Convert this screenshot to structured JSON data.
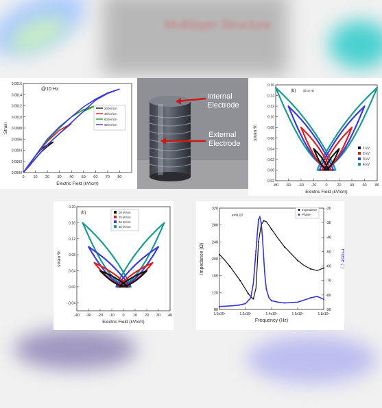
{
  "background": {
    "blurred_text": "Multilayer Structure",
    "colors": {
      "page": "#f1f1f1",
      "panel": "#ffffff"
    }
  },
  "photo": {
    "label_internal": "Internal Electrode",
    "label_external": "External Electrode",
    "arrow_color": "#d01818"
  },
  "chart_data": [
    {
      "type": "line",
      "title": "@10 Hz",
      "xlabel": "Electric Field (kV/cm)",
      "ylabel": "Strain",
      "xlim": [
        0,
        90
      ],
      "ylim": [
        0,
        0.0016
      ],
      "xticks": [
        0,
        10,
        20,
        30,
        40,
        50,
        60,
        70,
        80
      ],
      "yticks": [
        0,
        0.0002,
        0.0004,
        0.0006,
        0.0008,
        0.001,
        0.0012,
        0.0014,
        0.0016
      ],
      "ytick_labels": [
        "0.0000",
        "0.0002",
        "0.0004",
        "0.0006",
        "0.0008",
        "0.0010",
        "0.0012",
        "0.0014",
        "0.0016"
      ],
      "legend_position": "middle-right",
      "series": [
        {
          "name": "20 kV/cm",
          "color": "#111111",
          "x": [
            0,
            5,
            10,
            15,
            20,
            25
          ],
          "y": [
            0,
            0.00012,
            0.00025,
            0.00037,
            0.00047,
            0.00055
          ],
          "return_y": [
            0,
            0.00015,
            0.0003,
            0.00042,
            0.0005,
            0.00055
          ]
        },
        {
          "name": "40 kV/cm",
          "color": "#e02020",
          "x": [
            0,
            10,
            20,
            30,
            40
          ],
          "y": [
            0,
            0.00025,
            0.0005,
            0.0007,
            0.00088
          ],
          "return_y": [
            0,
            0.0003,
            0.00056,
            0.00076,
            0.00088
          ]
        },
        {
          "name": "60 kV/cm",
          "color": "#20a020",
          "x": [
            0,
            10,
            20,
            30,
            40,
            50,
            60
          ],
          "y": [
            0,
            0.00025,
            0.0005,
            0.0007,
            0.0009,
            0.0011,
            0.0012
          ],
          "return_y": [
            0,
            0.0003,
            0.00058,
            0.0008,
            0.001,
            0.00113,
            0.0012
          ]
        },
        {
          "name": "80 kV/cm",
          "color": "#3a3ae0",
          "x": [
            0,
            10,
            20,
            30,
            40,
            50,
            60,
            70,
            80
          ],
          "y": [
            0,
            0.00025,
            0.0005,
            0.0007,
            0.0009,
            0.0011,
            0.0013,
            0.00142,
            0.0015
          ],
          "return_y": [
            0,
            0.0003,
            0.0006,
            0.00082,
            0.001,
            0.00118,
            0.00132,
            0.00143,
            0.0015
          ]
        }
      ]
    },
    {
      "type": "line",
      "title": "@10 Hz",
      "panel_label": "(b)",
      "xlabel": "Electric Field (kV/cm)",
      "ylabel": "strain %",
      "xlim": [
        -80,
        80
      ],
      "ylim": [
        -0.02,
        0.16
      ],
      "xticks": [
        -80,
        -60,
        -40,
        -20,
        0,
        20,
        40,
        60,
        80
      ],
      "yticks": [
        -0.02,
        0,
        0.02,
        0.04,
        0.06,
        0.08,
        0.1,
        0.12,
        0.14,
        0.16
      ],
      "ytick_labels": [
        "-0.02",
        "0.00",
        "0.02",
        "0.04",
        "0.06",
        "0.08",
        "0.10",
        "0.12",
        "0.14",
        "0.16"
      ],
      "legend_position": "bottom-right",
      "series": [
        {
          "name": "1 kV",
          "color": "#111111",
          "emax": 20,
          "smax": 0.04,
          "marker": "square"
        },
        {
          "name": "2 kV",
          "color": "#e02020",
          "emax": 40,
          "smax": 0.08,
          "marker": "circle"
        },
        {
          "name": "3 kV",
          "color": "#3a3ae0",
          "emax": 60,
          "smax": 0.12,
          "marker": "triangle"
        },
        {
          "name": "4 kV",
          "color": "#1a9a90",
          "emax": 80,
          "smax": 0.155,
          "marker": "diamond"
        }
      ]
    },
    {
      "type": "line",
      "panel_label": "(b)",
      "xlabel": "Electric Field (kV/cm)",
      "ylabel": "strain %",
      "xlim": [
        -40,
        40
      ],
      "ylim": [
        -0.06,
        0.2
      ],
      "xticks": [
        -40,
        -30,
        -20,
        -10,
        0,
        10,
        20,
        30,
        40
      ],
      "yticks": [
        -0.04,
        0,
        0.04,
        0.08,
        0.12,
        0.16,
        0.2
      ],
      "ytick_labels": [
        "-0.04",
        "0.00",
        "0.04",
        "0.08",
        "0.12",
        "0.16",
        "0.20"
      ],
      "legend_position": "top-center",
      "series": [
        {
          "name": "20 kV/cm",
          "color": "#111111",
          "emax": 20,
          "smax": 0.04
        },
        {
          "name": "25 kV/cm",
          "color": "#e02020",
          "emax": 25,
          "smax": 0.06
        },
        {
          "name": "30 kV/cm",
          "color": "#3a3ae0",
          "emax": 30,
          "smax": 0.1
        },
        {
          "name": "35 kV/cm",
          "color": "#1a9a90",
          "emax": 35,
          "smax": 0.16
        }
      ]
    },
    {
      "type": "line",
      "annotation": "x=0.07",
      "xlabel": "Frequency (Hz)",
      "ylabel": "Impedance (Ω)",
      "y2label": "Phase (°)",
      "xlim": [
        100000,
        180000
      ],
      "ylim": [
        80,
        320
      ],
      "y2lim": [
        -90,
        -20
      ],
      "xtick_labels": [
        "1.0x10⁵",
        "1.2x10⁵",
        "1.4x10⁵",
        "1.6x10⁵",
        "1.8x10⁵"
      ],
      "xticks": [
        100000,
        120000,
        140000,
        160000,
        180000
      ],
      "yticks": [
        80,
        120,
        160,
        200,
        240,
        280,
        320
      ],
      "y2ticks": [
        -90,
        -80,
        -70,
        -60,
        -50,
        -40,
        -30,
        -20
      ],
      "legend_position": "top-right",
      "series": [
        {
          "name": "Impedance",
          "color": "#111111",
          "axis": "left",
          "x": [
            100000,
            104000,
            108000,
            112000,
            116000,
            120000,
            122000,
            124000,
            126000,
            128000,
            130000,
            132000,
            134000,
            136000,
            140000,
            145000,
            150000,
            155000,
            160000,
            165000,
            170000,
            175000,
            180000
          ],
          "y": [
            210,
            197,
            182,
            165,
            148,
            128,
            118,
            110,
            105,
            130,
            240,
            280,
            290,
            288,
            270,
            248,
            228,
            212,
            196,
            184,
            176,
            172,
            178
          ]
        },
        {
          "name": "Phase",
          "color": "#3434d8",
          "axis": "right",
          "x": [
            100000,
            110000,
            115000,
            120000,
            124000,
            126000,
            128000,
            129000,
            130000,
            131000,
            132000,
            133000,
            134000,
            135000,
            136000,
            138000,
            140000,
            145000,
            150000,
            160000,
            170000,
            175000,
            180000
          ],
          "y": [
            -88,
            -87.5,
            -87,
            -86,
            -82,
            -72,
            -50,
            -38,
            -28,
            -26,
            -30,
            -40,
            -55,
            -68,
            -76,
            -82,
            -84,
            -85,
            -85.5,
            -85,
            -82,
            -81,
            -83
          ]
        }
      ]
    }
  ]
}
